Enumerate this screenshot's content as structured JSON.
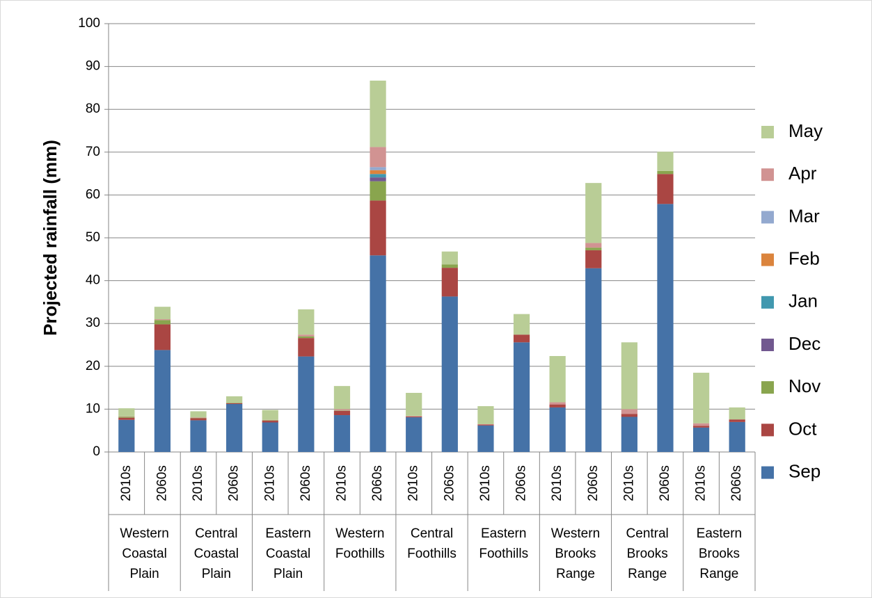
{
  "chart_data": {
    "type": "stacked_bar",
    "y_label": "Projected rainfall (mm)",
    "categories": [
      "2010s",
      "2060s",
      "2010s",
      "2060s",
      "2010s",
      "2060s",
      "2010s",
      "2060s",
      "2010s",
      "2060s",
      "2010s",
      "2060s",
      "2010s",
      "2060s",
      "2010s",
      "2060s",
      "2010s",
      "2060s"
    ],
    "groups": [
      "Western Coastal Plain",
      "Central Coastal Plain",
      "Eastern Coastal Plain",
      "Western Foothills",
      "Central Foothills",
      "Eastern Foothills",
      "Western Brooks Range",
      "Central Brooks Range",
      "Eastern Brooks Range"
    ],
    "series": [
      {
        "name": "Sep",
        "color": "#4572a7",
        "values": [
          7.5,
          23.8,
          7.4,
          11.2,
          6.9,
          22.3,
          8.6,
          45.9,
          8.1,
          36.3,
          6.2,
          25.6,
          10.4,
          42.9,
          8.2,
          57.9,
          5.7,
          7.0
        ]
      },
      {
        "name": "Oct",
        "color": "#aa4643",
        "values": [
          0.5,
          6.0,
          0.5,
          0.2,
          0.4,
          4.3,
          1.0,
          12.8,
          0.2,
          6.7,
          0.2,
          1.8,
          0.7,
          4.2,
          0.7,
          7.0,
          0.4,
          0.6
        ]
      },
      {
        "name": "Nov",
        "color": "#89a54e",
        "values": [
          0.2,
          1.0,
          0.1,
          0.1,
          0.1,
          0.4,
          0.1,
          4.5,
          0,
          0.8,
          0,
          0,
          0,
          0.6,
          0,
          0.7,
          0,
          0
        ]
      },
      {
        "name": "Dec",
        "color": "#71588f",
        "values": [
          0,
          0,
          0,
          0,
          0,
          0,
          0,
          0.9,
          0,
          0,
          0,
          0,
          0,
          0,
          0,
          0,
          0,
          0
        ]
      },
      {
        "name": "Jan",
        "color": "#4198af",
        "values": [
          0,
          0,
          0,
          0,
          0,
          0,
          0,
          0.8,
          0,
          0,
          0,
          0,
          0,
          0,
          0,
          0,
          0,
          0
        ]
      },
      {
        "name": "Feb",
        "color": "#db843d",
        "values": [
          0,
          0,
          0,
          0,
          0,
          0,
          0,
          0.9,
          0,
          0,
          0,
          0,
          0,
          0,
          0,
          0,
          0,
          0
        ]
      },
      {
        "name": "Mar",
        "color": "#93a9cf",
        "values": [
          0,
          0,
          0,
          0,
          0,
          0,
          0,
          0.7,
          0,
          0,
          0,
          0,
          0,
          0,
          0,
          0,
          0,
          0
        ]
      },
      {
        "name": "Apr",
        "color": "#d19392",
        "values": [
          0.1,
          0.2,
          0.1,
          0,
          0.1,
          0.4,
          0.3,
          4.7,
          0.1,
          0,
          0.1,
          0,
          0.5,
          1.1,
          1.1,
          0,
          0.6,
          0
        ]
      },
      {
        "name": "May",
        "color": "#b9cd96",
        "values": [
          1.9,
          2.9,
          1.4,
          1.5,
          2.3,
          5.9,
          5.4,
          15.5,
          5.4,
          3.0,
          4.2,
          4.8,
          10.8,
          14.0,
          15.6,
          4.5,
          11.8,
          2.8
        ]
      }
    ],
    "ylim": [
      0,
      100
    ],
    "yticks": [
      0,
      10,
      20,
      30,
      40,
      50,
      60,
      70,
      80,
      90,
      100
    ],
    "grid": true,
    "legend": "right"
  }
}
